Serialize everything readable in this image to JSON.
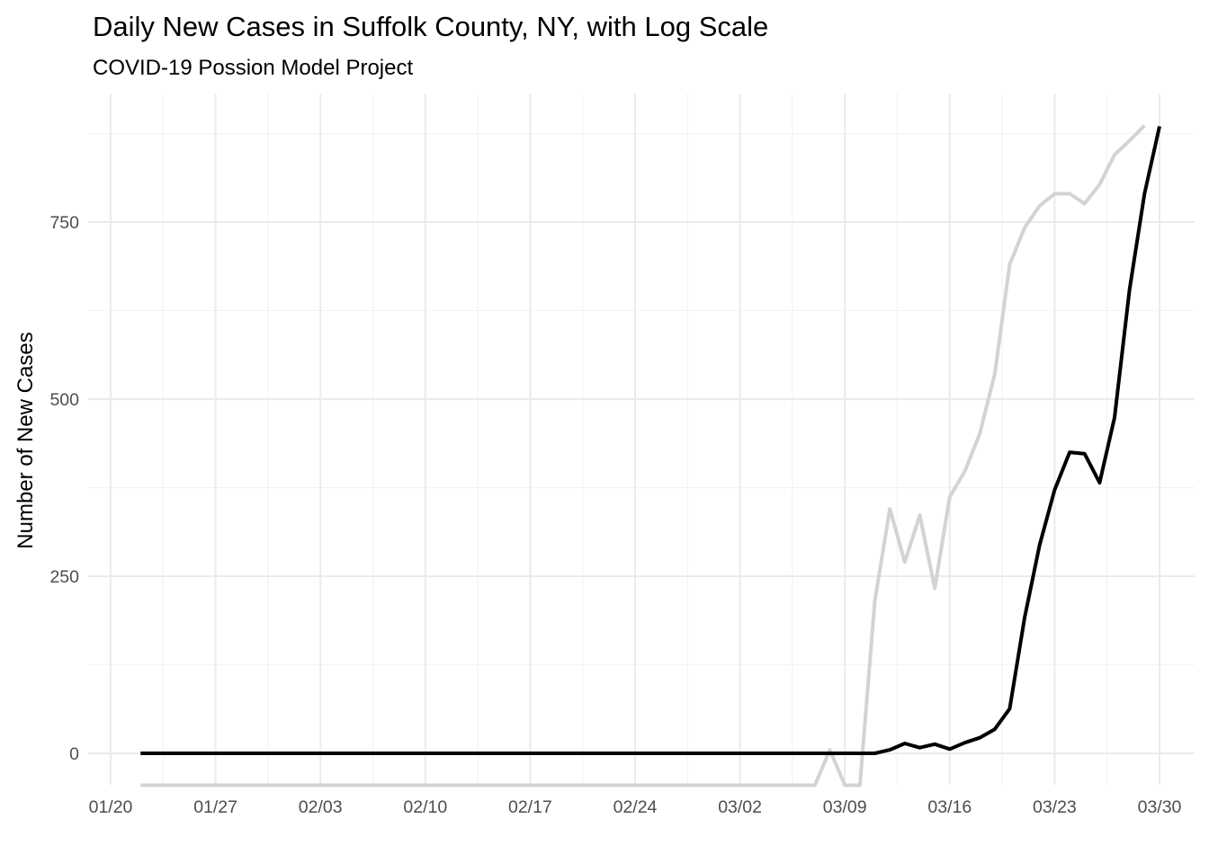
{
  "chart_data": {
    "type": "line",
    "title": "Daily New Cases in Suffolk County, NY, with Log Scale",
    "subtitle": "COVID-19 Possion Model Project",
    "xlabel": "",
    "ylabel": "Number of New Cases",
    "x_tick_labels": [
      "01/20",
      "01/27",
      "02/03",
      "02/10",
      "02/17",
      "02/24",
      "03/02",
      "03/09",
      "03/16",
      "03/23",
      "03/30"
    ],
    "y_tick_labels": [
      "0",
      "250",
      "500",
      "750"
    ],
    "y_ticks": [
      0,
      250,
      500,
      750
    ],
    "ylim": [
      -45,
      930
    ],
    "grid": true,
    "legend": "none",
    "x_start_date": "2020-01-22",
    "series": [
      {
        "color": "#000000",
        "values": [
          0,
          0,
          0,
          0,
          0,
          0,
          0,
          0,
          0,
          0,
          0,
          0,
          0,
          0,
          0,
          0,
          0,
          0,
          0,
          0,
          0,
          0,
          0,
          0,
          0,
          0,
          0,
          0,
          0,
          0,
          0,
          0,
          0,
          0,
          0,
          0,
          0,
          0,
          0,
          0,
          0,
          0,
          0,
          0,
          0,
          0,
          0,
          0,
          0,
          0,
          5,
          14,
          8,
          13,
          6,
          15,
          22,
          34,
          63,
          192,
          294,
          372,
          425,
          423,
          382,
          474,
          655,
          790,
          885
        ]
      },
      {
        "color": "#d3d3d3",
        "values": [
          -45,
          -45,
          -45,
          -45,
          -45,
          -45,
          -45,
          -45,
          -45,
          -45,
          -45,
          -45,
          -45,
          -45,
          -45,
          -45,
          -45,
          -45,
          -45,
          -45,
          -45,
          -45,
          -45,
          -45,
          -45,
          -45,
          -45,
          -45,
          -45,
          -45,
          -45,
          -45,
          -45,
          -45,
          -45,
          -45,
          -45,
          -45,
          -45,
          -45,
          -45,
          -45,
          -45,
          -45,
          -45,
          -45,
          5,
          -45,
          -45,
          215,
          345,
          270,
          336,
          233,
          362,
          398,
          451,
          535,
          690,
          742,
          773,
          790,
          790,
          776,
          803,
          845,
          865,
          886
        ]
      }
    ]
  }
}
